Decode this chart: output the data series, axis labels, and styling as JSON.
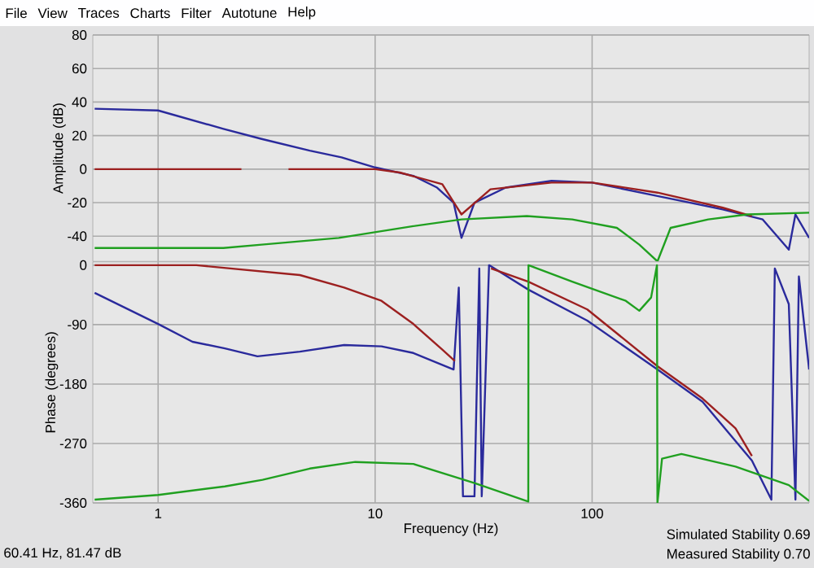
{
  "chart_data": [
    {
      "type": "line",
      "ylabel": "Amplitude (dB)",
      "log": "x",
      "grid": true,
      "tick_labels": "y",
      "xlim": [
        0.5,
        1000
      ],
      "ylim": [
        -55,
        80
      ],
      "xticks": [
        1,
        10,
        100
      ],
      "yticks": [
        80,
        60,
        40,
        20,
        0,
        -20,
        -40
      ],
      "annotations": [
        "File",
        "View",
        "Traces",
        "Charts",
        "Filter",
        "Autotune",
        "Help"
      ],
      "series": [
        {
          "color": "#2a2a9c",
          "x": [
            0.51,
            1,
            2,
            3,
            5,
            7,
            10,
            15,
            19.3,
            23,
            25,
            28.7,
            40,
            65,
            100,
            200,
            400,
            611,
            806,
            865,
            1000
          ],
          "values": [
            36,
            35,
            24,
            18,
            11,
            7,
            1,
            -4,
            -11,
            -20,
            -41,
            -20,
            -11,
            -7,
            -8,
            -16,
            -24,
            -30,
            -48,
            -27,
            -41
          ]
        },
        {
          "color": "#9c2020",
          "x": [
            0.51,
            1,
            2,
            2.42,
            3,
            3.99,
            7,
            10,
            13,
            20.4,
            25,
            34,
            65,
            100,
            200,
            400,
            545
          ],
          "values": [
            0,
            0,
            0,
            0,
            null,
            0,
            0,
            0,
            -2,
            -9,
            -27,
            -12,
            -8,
            -8,
            -14,
            -23,
            -28
          ]
        },
        {
          "color": "#20a020",
          "x": [
            0.51,
            2,
            3,
            6.8,
            15,
            25,
            50,
            81,
            130,
            165,
            200,
            230,
            343,
            520,
            1000
          ],
          "values": [
            -47,
            -47,
            -45,
            -41,
            -34,
            -30,
            -28,
            -30,
            -35,
            -45,
            -55,
            -35,
            -30,
            -27,
            -26
          ]
        }
      ]
    },
    {
      "type": "line",
      "xlabel": "Frequency (Hz)",
      "ylabel": "Phase (degrees)",
      "log": "x",
      "grid": true,
      "xlim": [
        0.5,
        1000
      ],
      "ylim": [
        -360,
        5
      ],
      "xticks": [
        1,
        10,
        100
      ],
      "yticks": [
        0,
        -90,
        -180,
        -270,
        -360
      ],
      "annotations": [
        "60.41 Hz, 81.47 dB",
        "Simulated Stability 0.69",
        "Measured Stability 0.70"
      ],
      "series": [
        {
          "color": "#2a2a9c",
          "x": [
            0.51,
            1,
            1.44,
            2.03,
            2.87,
            4.5,
            7.2,
            10.7,
            15,
            23,
            24.3,
            25.4,
            28.7,
            30.2,
            31,
            33.5,
            50.8,
            95,
            200,
            323,
            545,
            670,
            695,
            806,
            865,
            897,
            1000
          ],
          "values": [
            -42,
            -89,
            -116,
            -126,
            -138,
            -131,
            -121,
            -123,
            -133,
            -158,
            -34,
            -350,
            -350,
            -5,
            -350,
            0,
            -37,
            -84,
            -158,
            -207,
            -296,
            -355,
            -5,
            -59,
            -355,
            -17,
            -158
          ]
        },
        {
          "color": "#9c2020",
          "x": [
            0.51,
            1.5,
            4.5,
            7.2,
            10.7,
            15,
            20.4,
            23.3,
            28,
            34.2,
            50.8,
            95,
            200,
            323,
            458,
            545
          ],
          "values": [
            0,
            0,
            -15,
            -34,
            -54,
            -89,
            -128,
            -145,
            null,
            -5,
            -25,
            -67,
            -153,
            -202,
            -247,
            -289
          ]
        },
        {
          "color": "#20a020",
          "x": [
            0.51,
            1,
            2.03,
            3.03,
            5,
            8.1,
            15,
            28.7,
            50.8,
            50.9,
            81,
            143,
            165,
            187,
            199,
            200,
            210,
            258,
            458,
            806,
            1000
          ],
          "values": [
            -355,
            -348,
            -335,
            -325,
            -308,
            -298,
            -301,
            -330,
            -358,
            0,
            -25,
            -54,
            -69,
            -49,
            0,
            -360,
            -293,
            -286,
            -305,
            -333,
            -357
          ]
        }
      ]
    }
  ]
}
